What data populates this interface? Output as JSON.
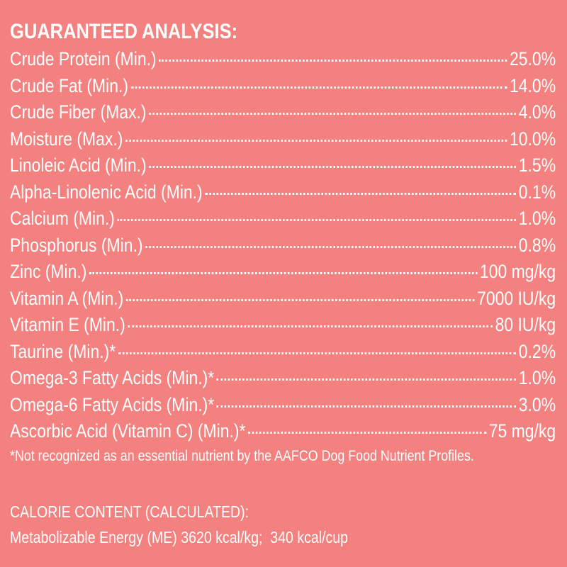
{
  "title": "GUARANTEED ANALYSIS:",
  "rows": [
    {
      "label": "Crude Protein (Min.)",
      "value": "25.0%"
    },
    {
      "label": "Crude Fat (Min.)",
      "value": "14.0%"
    },
    {
      "label": "Crude Fiber (Max.)",
      "value": "4.0%"
    },
    {
      "label": "Moisture (Max.)",
      "value": "10.0%"
    },
    {
      "label": "Linoleic Acid (Min.)",
      "value": "1.5%"
    },
    {
      "label": "Alpha-Linolenic Acid (Min.)",
      "value": "0.1%"
    },
    {
      "label": "Calcium (Min.)",
      "value": "1.0%"
    },
    {
      "label": "Phosphorus (Min.)",
      "value": "0.8%"
    },
    {
      "label": "Zinc (Min.)",
      "value": "100 mg/kg"
    },
    {
      "label": "Vitamin A (Min.)",
      "value": "7000 IU/kg"
    },
    {
      "label": "Vitamin E (Min.)",
      "value": "80 IU/kg"
    },
    {
      "label": "Taurine (Min.)*",
      "value": "0.2%"
    },
    {
      "label": "Omega-3 Fatty Acids (Min.)*",
      "value": "1.0%"
    },
    {
      "label": "Omega-6 Fatty Acids (Min.)*",
      "value": "3.0%"
    },
    {
      "label": "Ascorbic Acid (Vitamin C) (Min.)*",
      "value": "75 mg/kg"
    }
  ],
  "footnote": "*Not recognized as an essential nutrient by the AAFCO Dog Food Nutrient Profiles.",
  "calorie": {
    "heading": "CALORIE CONTENT (CALCULATED):",
    "text": "Metabolizable Energy (ME) 3620 kcal/kg;  340 kcal/cup"
  }
}
